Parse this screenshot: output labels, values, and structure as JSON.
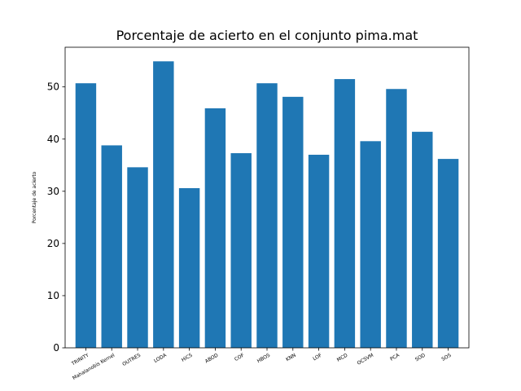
{
  "chart_data": {
    "type": "bar",
    "title": "Porcentaje de acierto en el conjunto pima.mat",
    "xlabel": "",
    "ylabel": "Porcentaje de acierto",
    "categories": [
      "TRINITY",
      "Mahalanobis Kernel",
      "OUTRES",
      "LODA",
      "HiCS",
      "ABOD",
      "COF",
      "HBOS",
      "KNN",
      "LOF",
      "MCD",
      "OCSVM",
      "PCA",
      "SOD",
      "SOS"
    ],
    "values": [
      50.7,
      38.8,
      34.6,
      54.9,
      30.6,
      45.9,
      37.3,
      50.7,
      48.1,
      37.0,
      51.5,
      39.6,
      49.6,
      41.4,
      36.2
    ],
    "ylim": [
      0,
      57.6
    ],
    "yticks": [
      0,
      10,
      20,
      30,
      40,
      50
    ],
    "bar_color": "#1f77b4",
    "grid": false,
    "legend": "none"
  }
}
